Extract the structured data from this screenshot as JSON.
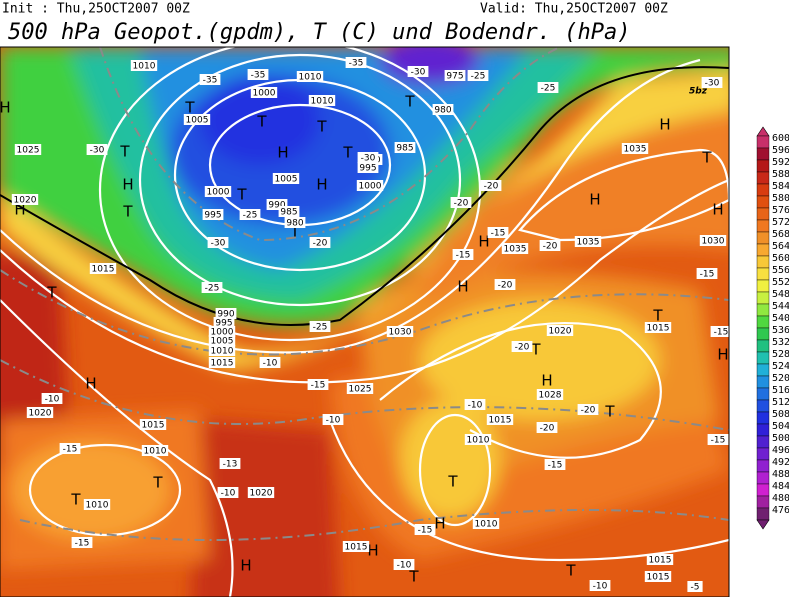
{
  "header": {
    "init": "Init : Thu,25OCT2007 00Z",
    "valid": "Valid: Thu,25OCT2007 00Z",
    "title": "500 hPa Geopot.(gpdm), T (C) und Bodendr. (hPa)"
  },
  "colorbar": {
    "levels": [
      600,
      596,
      592,
      588,
      584,
      580,
      576,
      572,
      568,
      564,
      560,
      556,
      552,
      548,
      544,
      540,
      536,
      532,
      528,
      524,
      520,
      516,
      512,
      508,
      504,
      500,
      496,
      492,
      488,
      484,
      480,
      476
    ],
    "colors": [
      "#c8306a",
      "#a01030",
      "#b41818",
      "#c82818",
      "#d83c10",
      "#e05010",
      "#e86418",
      "#f07820",
      "#f09028",
      "#f8a830",
      "#f8c838",
      "#f8e040",
      "#f0f040",
      "#c8f040",
      "#90e840",
      "#50d840",
      "#30c850",
      "#20c080",
      "#20c0b0",
      "#20b0d8",
      "#2090e0",
      "#2070e0",
      "#2050e0",
      "#2030e0",
      "#3020d8",
      "#5020d0",
      "#7020d0",
      "#9020d0",
      "#b020d0",
      "#d020d0",
      "#a020a0",
      "#702070"
    ]
  },
  "map": {
    "credit": "5bz",
    "pressure_centers": [
      "H",
      "T",
      "T",
      "T",
      "T",
      "H",
      "T",
      "H",
      "T",
      "T",
      "H",
      "T",
      "H",
      "T",
      "T",
      "H",
      "T",
      "H",
      "H",
      "H",
      "T",
      "H",
      "T",
      "H",
      "T",
      "T",
      "T",
      "H",
      "H",
      "T",
      "T",
      "H",
      "T",
      "H",
      "H"
    ],
    "isobar_labels": [
      "1010",
      "1005",
      "1000",
      "1010",
      "1010",
      "975",
      "980",
      "985",
      "990",
      "995",
      "1000",
      "1005",
      "1000",
      "995",
      "990",
      "985",
      "980",
      "1025",
      "1020",
      "1015",
      "990",
      "995",
      "1000",
      "1005",
      "1010",
      "1015",
      "1030",
      "1025",
      "1020",
      "1015",
      "1035",
      "1035",
      "1030",
      "1035",
      "1020",
      "1015",
      "1010",
      "1010",
      "1020",
      "1015",
      "1010",
      "1028",
      "1010",
      "1015",
      "1015",
      "1015"
    ],
    "isotherm_labels": [
      "-35",
      "-35",
      "-35",
      "-30",
      "-25",
      "-25",
      "-30",
      "-30",
      "-30",
      "-25",
      "-30",
      "-20",
      "-25",
      "-25",
      "-20",
      "-20",
      "-15",
      "-15",
      "-20",
      "-20",
      "-15",
      "-15",
      "-20",
      "-20",
      "-15",
      "-10",
      "-15",
      "-10",
      "-10",
      "-15",
      "-13",
      "-10",
      "-15",
      "-15",
      "-20",
      "-15",
      "-10",
      "-10",
      "-5",
      "-10"
    ]
  }
}
